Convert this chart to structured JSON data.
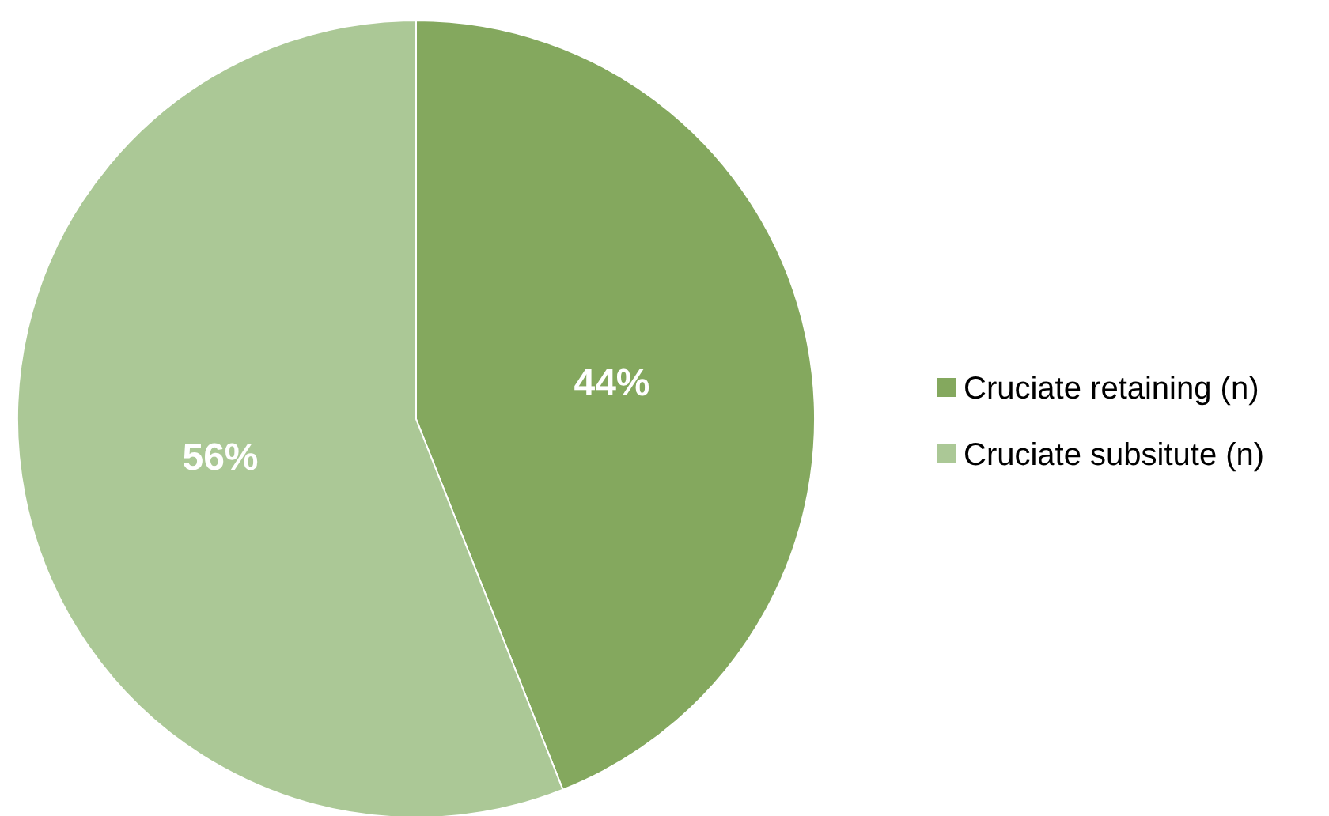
{
  "chart_data": {
    "type": "pie",
    "categories": [
      "Cruciate retaining (n)",
      "Cruciate subsitute (n)"
    ],
    "values": [
      44,
      56
    ],
    "colors": [
      "#84a85e",
      "#abc896"
    ],
    "value_labels": [
      "44%",
      "56%"
    ],
    "legend": "right"
  }
}
